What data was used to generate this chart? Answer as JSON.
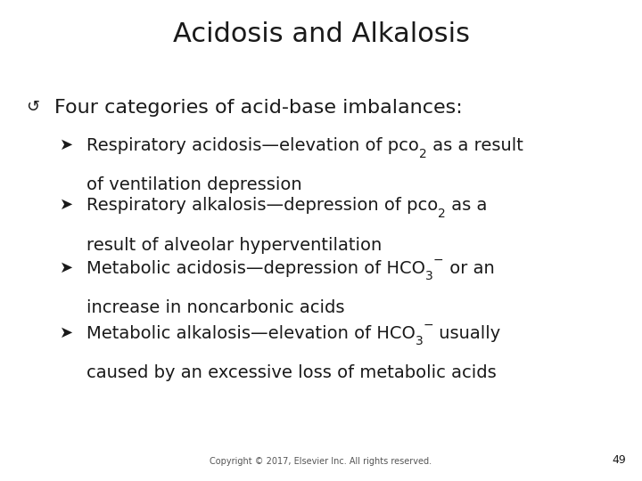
{
  "title": "Acidosis and Alkalosis",
  "background_color": "#ffffff",
  "text_color": "#1a1a1a",
  "copyright": "Copyright © 2017, Elsevier Inc. All rights reserved.",
  "page_number": "49",
  "title_fontsize": 22,
  "main_sym_fontsize": 13,
  "main_text_fontsize": 16,
  "sub_arrow_fontsize": 13,
  "sub_text_fontsize": 14,
  "sub_script_fontsize": 10,
  "copyright_fontsize": 7,
  "page_fontsize": 9,
  "main_sym": "↺",
  "sub_sym": "➤",
  "bullets": [
    {
      "pre": "Respiratory acidosis—elevation of pco",
      "sub": "2",
      "sup": "",
      "post": " as a result",
      "line2": "of ventilation depression"
    },
    {
      "pre": "Respiratory alkalosis—depression of pco",
      "sub": "2",
      "sup": "",
      "post": " as a",
      "line2": "result of alveolar hyperventilation"
    },
    {
      "pre": "Metabolic acidosis—depression of HCO",
      "sub": "3",
      "sup": "−",
      "post": " or an",
      "line2": "increase in noncarbonic acids"
    },
    {
      "pre": "Metabolic alkalosis—elevation of HCO",
      "sub": "3",
      "sup": "−",
      "post": " usually",
      "line2": "caused by an excessive loss of metabolic acids"
    }
  ]
}
